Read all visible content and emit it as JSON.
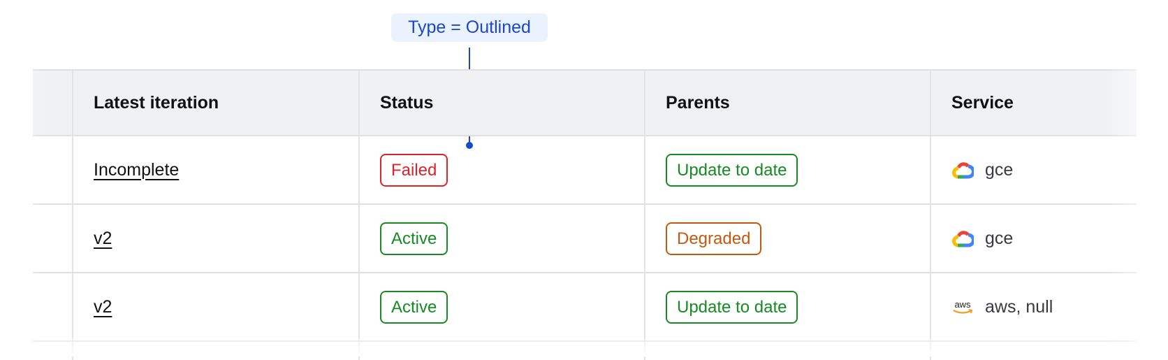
{
  "annotation": {
    "label": "Type = Outlined",
    "color": "#1a47cc"
  },
  "table": {
    "columns": [
      "Latest iteration",
      "Status",
      "Parents",
      "Service"
    ],
    "rows": [
      {
        "iteration": "Incomplete",
        "status": {
          "label": "Failed",
          "color": "#e0212b"
        },
        "parents": {
          "label": "Update to date",
          "color": "#168a23"
        },
        "service": {
          "icon": "google-cloud-icon",
          "label": "gce"
        }
      },
      {
        "iteration": "v2",
        "status": {
          "label": "Active",
          "color": "#168a23"
        },
        "parents": {
          "label": "Degraded",
          "color": "#c4580f"
        },
        "service": {
          "icon": "google-cloud-icon",
          "label": "gce"
        }
      },
      {
        "iteration": "v2",
        "status": {
          "label": "Active",
          "color": "#168a23"
        },
        "parents": {
          "label": "Update to date",
          "color": "#168a23"
        },
        "service": {
          "icon": "aws-icon",
          "label": "aws, null"
        }
      }
    ]
  }
}
